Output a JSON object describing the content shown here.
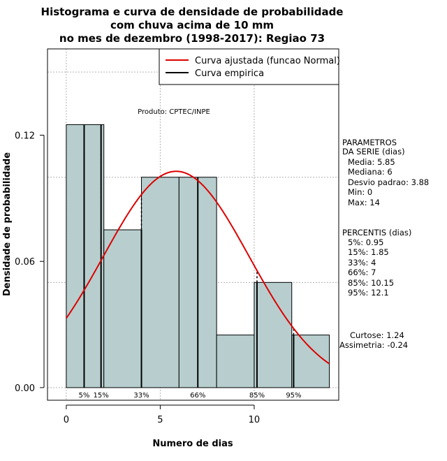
{
  "chart_data": {
    "type": "bar",
    "title_lines": [
      "Histograma e curva de densidade de probabilidade",
      "com chuva acima de 10 mm",
      "no mes de dezembro (1998-2017): Regiao 73"
    ],
    "xlabel": "Numero de dias",
    "ylabel": "Densidade de probabilidade",
    "xlim": [
      -1,
      14.5
    ],
    "ylim": [
      -0.006,
      0.161
    ],
    "x_ticks": [
      0,
      5,
      10
    ],
    "y_ticks": [
      0.0,
      0.06,
      0.12
    ],
    "y_tick_labels": [
      "0.00",
      "0.06",
      "0.12"
    ],
    "grid": true,
    "bins": [
      {
        "x0": 0,
        "x1": 2,
        "density": 0.125
      },
      {
        "x0": 2,
        "x1": 4,
        "density": 0.075
      },
      {
        "x0": 4,
        "x1": 6,
        "density": 0.1
      },
      {
        "x0": 6,
        "x1": 8,
        "density": 0.1
      },
      {
        "x0": 8,
        "x1": 10,
        "density": 0.025
      },
      {
        "x0": 10,
        "x1": 12,
        "density": 0.05
      },
      {
        "x0": 12,
        "x1": 14,
        "density": 0.025
      }
    ],
    "bar_color": "#b8cece",
    "normal_fit": {
      "mean": 5.85,
      "sd": 3.88,
      "x_range": [
        0,
        14
      ],
      "color": "#dd0000"
    },
    "percentiles": [
      {
        "label": "5%",
        "x": 0.95
      },
      {
        "label": "15%",
        "x": 1.85
      },
      {
        "label": "33%",
        "x": 4
      },
      {
        "label": "66%",
        "x": 7
      },
      {
        "label": "85%",
        "x": 10.15
      },
      {
        "label": "95%",
        "x": 12.1
      }
    ],
    "legend": {
      "placement": "top-right",
      "entries": [
        {
          "label": "Curva ajustada (funcao Normal)",
          "color": "#dd0000"
        },
        {
          "label": "Curva empirica",
          "color": "#000000"
        }
      ]
    },
    "credit": "Produto: CPTEC/INPE"
  },
  "parameters": {
    "title_lines": [
      "PARAMETROS",
      "DA SERIE (dias)"
    ],
    "lines": [
      "Media: 5.85",
      "Mediana: 6",
      "Desvio padrao: 3.88",
      "Min: 0",
      "Max: 14"
    ]
  },
  "percentis": {
    "title": "PERCENTIS (dias)",
    "lines": [
      "5%: 0.95",
      "15%: 1.85",
      "33%: 4",
      "66%: 7",
      "85%: 10.15",
      "95%: 12.1"
    ]
  },
  "shape": {
    "lines": [
      "Curtose: 1.24",
      "Assimetria: -0.24"
    ]
  }
}
